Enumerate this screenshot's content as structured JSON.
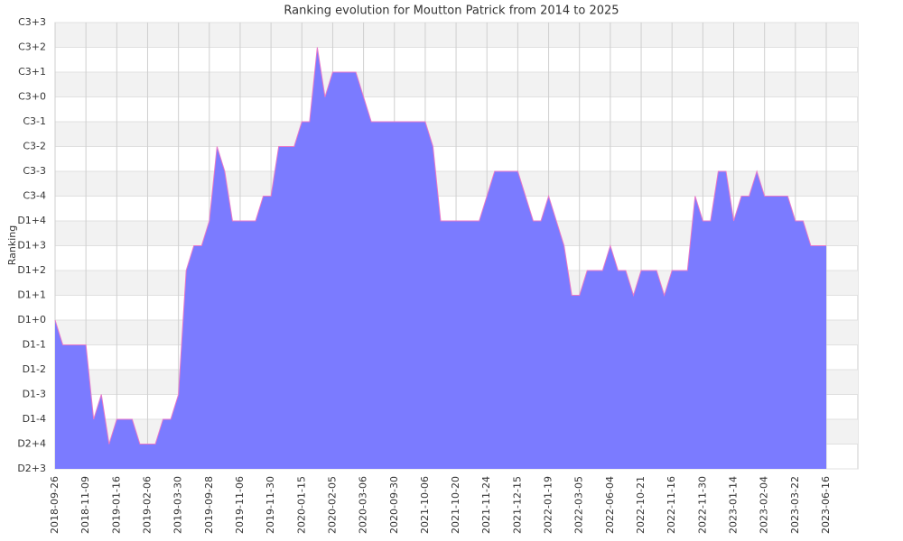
{
  "chart_data": {
    "type": "area",
    "title": "Ranking evolution for Moutton Patrick from 2014 to 2025",
    "y_label": "Ranking",
    "categories": [
      "2018-09-26",
      null,
      null,
      null,
      "2018-11-09",
      null,
      null,
      null,
      "2019-01-16",
      null,
      null,
      null,
      "2019-02-06",
      null,
      null,
      null,
      "2019-03-30",
      null,
      null,
      null,
      "2019-09-28",
      null,
      null,
      null,
      "2019-11-06",
      null,
      null,
      null,
      "2019-11-30",
      null,
      null,
      null,
      "2020-01-15",
      null,
      null,
      null,
      "2020-02-05",
      null,
      null,
      null,
      "2020-03-06",
      null,
      null,
      null,
      "2020-09-30",
      null,
      null,
      null,
      "2021-10-06",
      null,
      null,
      null,
      "2021-10-20",
      null,
      null,
      null,
      "2021-11-24",
      null,
      null,
      null,
      "2021-12-15",
      null,
      null,
      null,
      "2022-01-19",
      null,
      null,
      null,
      "2022-03-05",
      null,
      null,
      null,
      "2022-06-04",
      null,
      null,
      null,
      "2022-10-21",
      null,
      null,
      null,
      "2022-11-16",
      null,
      null,
      null,
      "2022-11-30",
      null,
      null,
      null,
      "2023-01-14",
      null,
      null,
      null,
      "2023-02-04",
      null,
      null,
      null,
      "2023-03-22",
      null,
      null,
      null,
      "2023-06-16"
    ],
    "values": [
      6,
      5,
      5,
      5,
      5,
      2,
      3,
      1,
      2,
      2,
      2,
      1,
      1,
      1,
      2,
      2,
      3,
      8,
      9,
      9,
      10,
      13,
      12,
      10,
      10,
      10,
      10,
      11,
      11,
      13,
      13,
      13,
      14,
      14,
      17,
      15,
      16,
      16,
      16,
      16,
      15,
      14,
      14,
      14,
      14,
      14,
      14,
      14,
      14,
      13,
      10,
      10,
      10,
      10,
      10,
      10,
      11,
      12,
      12,
      12,
      12,
      11,
      10,
      10,
      11,
      10,
      9,
      7,
      7,
      8,
      8,
      8,
      9,
      8,
      8,
      7,
      8,
      8,
      8,
      7,
      8,
      8,
      8,
      11,
      10,
      10,
      12,
      12,
      10,
      11,
      11,
      12,
      11,
      11,
      11,
      11,
      10,
      10,
      9,
      9,
      9
    ],
    "color": "#7b7bff",
    "line_color": "#e878c8",
    "ylim": [
      0,
      18
    ],
    "yticks": [
      {
        "value": 0,
        "label": "D2+3"
      },
      {
        "value": 1,
        "label": "D2+4"
      },
      {
        "value": 2,
        "label": "D1-4"
      },
      {
        "value": 3,
        "label": "D1-3"
      },
      {
        "value": 4,
        "label": "D1-2"
      },
      {
        "value": 5,
        "label": "D1-1"
      },
      {
        "value": 6,
        "label": "D1+0"
      },
      {
        "value": 7,
        "label": "D1+1"
      },
      {
        "value": 8,
        "label": "D1+2"
      },
      {
        "value": 9,
        "label": "D1+3"
      },
      {
        "value": 10,
        "label": "D1+4"
      },
      {
        "value": 11,
        "label": "C3-4"
      },
      {
        "value": 12,
        "label": "C3-3"
      },
      {
        "value": 13,
        "label": "C3-2"
      },
      {
        "value": 14,
        "label": "C3-1"
      },
      {
        "value": 15,
        "label": "C3+0"
      },
      {
        "value": 16,
        "label": "C3+1"
      },
      {
        "value": 17,
        "label": "C3+2"
      },
      {
        "value": 18,
        "label": "C3+3"
      }
    ],
    "grid": true
  }
}
